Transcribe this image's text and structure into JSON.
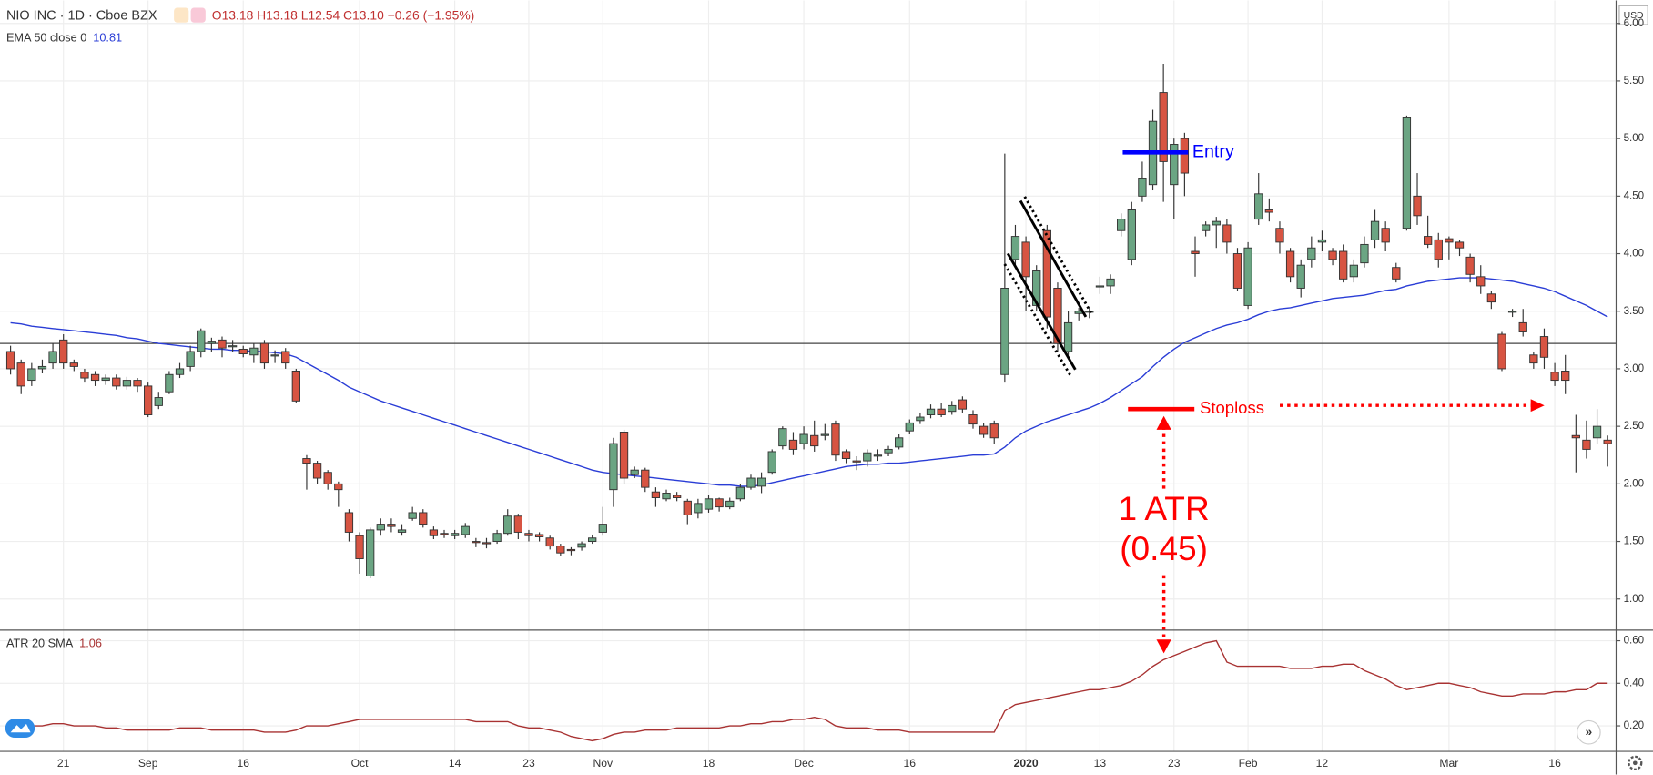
{
  "header": {
    "symbol": "NIO INC · 1D · Cboe BZX",
    "ohlc": "O13.18 H13.18 L12.54 C13.10 −0.26 (−1.95%)",
    "currency": "USD"
  },
  "chart_data": [
    {
      "type": "candlestick",
      "categories": [
        null,
        null,
        null,
        null,
        null,
        "21",
        null,
        null,
        null,
        null,
        null,
        null,
        null,
        "Sep",
        null,
        null,
        null,
        null,
        null,
        null,
        null,
        null,
        "16",
        null,
        null,
        null,
        null,
        null,
        null,
        null,
        null,
        null,
        null,
        "Oct",
        null,
        null,
        null,
        null,
        null,
        null,
        null,
        null,
        "14",
        null,
        null,
        null,
        null,
        null,
        null,
        "23",
        null,
        null,
        null,
        null,
        null,
        null,
        "Nov",
        null,
        null,
        null,
        null,
        null,
        null,
        null,
        null,
        null,
        "18",
        null,
        null,
        null,
        null,
        null,
        null,
        null,
        null,
        "Dec",
        null,
        null,
        null,
        null,
        null,
        null,
        null,
        null,
        null,
        "16",
        null,
        null,
        null,
        null,
        null,
        null,
        null,
        null,
        null,
        null,
        "2020",
        null,
        null,
        null,
        null,
        null,
        null,
        "13",
        null,
        null,
        null,
        null,
        null,
        null,
        "23",
        null,
        null,
        null,
        null,
        null,
        null,
        "Feb",
        null,
        null,
        null,
        null,
        null,
        null,
        "12",
        null,
        null,
        null,
        null,
        null,
        null,
        null,
        null,
        null,
        null,
        null,
        "Mar",
        null,
        null,
        null,
        null,
        null,
        null,
        null,
        null,
        null,
        "16",
        null,
        null,
        null,
        null,
        null
      ],
      "open": [
        3.15,
        3.05,
        2.9,
        3.0,
        3.05,
        3.25,
        3.05,
        2.97,
        2.95,
        2.9,
        2.92,
        2.85,
        2.9,
        2.85,
        2.68,
        2.8,
        2.95,
        3.02,
        3.15,
        3.22,
        3.25,
        3.2,
        3.17,
        3.12,
        3.22,
        3.12,
        3.15,
        2.98,
        2.22,
        2.18,
        2.1,
        2.0,
        1.75,
        1.55,
        1.2,
        1.6,
        1.65,
        1.58,
        1.7,
        1.75,
        1.6,
        1.57,
        1.55,
        1.56,
        1.5,
        1.49,
        1.5,
        1.57,
        1.72,
        1.57,
        1.56,
        1.53,
        1.46,
        1.43,
        1.45,
        1.5,
        1.58,
        1.95,
        2.45,
        2.08,
        2.12,
        1.93,
        1.87,
        1.9,
        1.85,
        1.75,
        1.78,
        1.87,
        1.8,
        1.87,
        1.97,
        1.98,
        2.1,
        2.33,
        2.38,
        2.35,
        2.42,
        2.42,
        2.52,
        2.28,
        2.2,
        2.2,
        2.25,
        2.27,
        2.32,
        2.46,
        2.55,
        2.6,
        2.65,
        2.63,
        2.73,
        2.6,
        2.5,
        2.52,
        2.95,
        3.95,
        4.1,
        3.55,
        4.2,
        3.7,
        3.15,
        3.48,
        3.5,
        3.72,
        3.72,
        4.2,
        3.95,
        4.5,
        4.6,
        5.4,
        4.6,
        5.0,
        4.02,
        4.2,
        4.25,
        4.25,
        4.0,
        3.55,
        4.3,
        4.38,
        4.22,
        4.02,
        3.7,
        3.95,
        4.1,
        4.02,
        4.02,
        3.8,
        3.92,
        4.12,
        4.22,
        3.88,
        4.22,
        4.5,
        4.15,
        4.12,
        4.13,
        4.1,
        3.97,
        3.8,
        3.65,
        3.3,
        3.5,
        3.4,
        3.12,
        3.28,
        2.97,
        2.98,
        2.42,
        2.38,
        2.4,
        2.38
      ],
      "high": [
        3.2,
        3.08,
        3.05,
        3.08,
        3.22,
        3.3,
        3.08,
        3.0,
        2.98,
        2.95,
        2.95,
        2.93,
        2.92,
        2.88,
        2.8,
        2.98,
        3.05,
        3.2,
        3.35,
        3.27,
        3.28,
        3.25,
        3.2,
        3.22,
        3.25,
        3.16,
        3.18,
        3.0,
        2.25,
        2.2,
        2.12,
        2.02,
        1.78,
        1.58,
        1.62,
        1.7,
        1.7,
        1.65,
        1.8,
        1.78,
        1.63,
        1.6,
        1.6,
        1.66,
        1.53,
        1.53,
        1.6,
        1.78,
        1.74,
        1.6,
        1.58,
        1.55,
        1.48,
        1.45,
        1.5,
        1.56,
        1.8,
        2.4,
        2.47,
        2.15,
        2.14,
        1.97,
        1.95,
        1.93,
        1.87,
        1.87,
        1.9,
        1.88,
        1.88,
        2.0,
        2.08,
        2.1,
        2.3,
        2.5,
        2.45,
        2.5,
        2.55,
        2.52,
        2.55,
        2.3,
        2.24,
        2.3,
        2.3,
        2.33,
        2.43,
        2.56,
        2.62,
        2.69,
        2.7,
        2.72,
        2.76,
        2.64,
        2.53,
        2.55,
        4.87,
        4.25,
        4.15,
        3.9,
        4.25,
        3.75,
        3.5,
        3.53,
        3.53,
        3.8,
        3.82,
        4.35,
        4.45,
        4.8,
        5.25,
        5.65,
        5.0,
        5.05,
        4.15,
        4.28,
        4.32,
        4.3,
        4.05,
        4.1,
        4.7,
        4.48,
        4.28,
        4.05,
        3.95,
        4.15,
        4.2,
        4.05,
        4.08,
        3.95,
        4.15,
        4.38,
        4.28,
        3.92,
        5.2,
        4.7,
        4.33,
        4.18,
        4.15,
        4.12,
        4.0,
        3.9,
        3.68,
        3.32,
        3.52,
        3.52,
        3.15,
        3.35,
        3.05,
        3.12,
        2.6,
        2.55,
        2.65,
        2.42
      ],
      "low": [
        2.95,
        2.78,
        2.85,
        2.96,
        3.0,
        3.0,
        2.98,
        2.88,
        2.85,
        2.86,
        2.82,
        2.82,
        2.8,
        2.58,
        2.65,
        2.78,
        2.92,
        2.98,
        3.1,
        3.15,
        3.1,
        3.15,
        3.1,
        3.05,
        3.0,
        3.05,
        3.0,
        2.7,
        1.95,
        2.0,
        1.95,
        1.8,
        1.5,
        1.22,
        1.18,
        1.55,
        1.58,
        1.55,
        1.68,
        1.62,
        1.52,
        1.53,
        1.52,
        1.53,
        1.45,
        1.44,
        1.48,
        1.55,
        1.52,
        1.5,
        1.5,
        1.43,
        1.37,
        1.38,
        1.42,
        1.48,
        1.55,
        1.8,
        2.0,
        2.05,
        1.93,
        1.8,
        1.85,
        1.85,
        1.65,
        1.7,
        1.75,
        1.76,
        1.78,
        1.85,
        1.95,
        1.92,
        2.08,
        2.3,
        2.25,
        2.3,
        2.28,
        2.38,
        2.2,
        2.18,
        2.12,
        2.15,
        2.2,
        2.24,
        2.3,
        2.43,
        2.52,
        2.57,
        2.58,
        2.6,
        2.62,
        2.48,
        2.4,
        2.35,
        2.88,
        3.9,
        3.5,
        3.5,
        3.35,
        3.15,
        3.12,
        3.42,
        3.44,
        3.65,
        3.65,
        4.15,
        3.9,
        4.45,
        4.55,
        4.45,
        4.3,
        4.5,
        3.8,
        4.15,
        4.05,
        4.0,
        3.68,
        3.52,
        4.25,
        4.28,
        4.0,
        3.75,
        3.62,
        3.88,
        4.02,
        3.9,
        3.75,
        3.75,
        3.88,
        4.05,
        4.02,
        3.75,
        4.2,
        4.25,
        4.05,
        3.88,
        3.95,
        3.98,
        3.75,
        3.65,
        3.52,
        2.98,
        3.45,
        3.28,
        3.0,
        3.0,
        2.85,
        2.78,
        2.1,
        2.22,
        2.35,
        2.15
      ],
      "close": [
        3.0,
        2.85,
        3.0,
        3.02,
        3.15,
        3.05,
        3.02,
        2.92,
        2.9,
        2.92,
        2.85,
        2.9,
        2.85,
        2.6,
        2.75,
        2.95,
        3.0,
        3.15,
        3.33,
        3.24,
        3.18,
        3.2,
        3.13,
        3.18,
        3.05,
        3.12,
        3.05,
        2.72,
        2.18,
        2.05,
        2.0,
        1.95,
        1.58,
        1.35,
        1.6,
        1.65,
        1.63,
        1.6,
        1.75,
        1.65,
        1.55,
        1.56,
        1.57,
        1.63,
        1.49,
        1.48,
        1.57,
        1.72,
        1.58,
        1.55,
        1.54,
        1.46,
        1.4,
        1.42,
        1.48,
        1.53,
        1.65,
        2.35,
        2.05,
        2.12,
        1.97,
        1.88,
        1.92,
        1.88,
        1.73,
        1.83,
        1.87,
        1.8,
        1.85,
        1.97,
        2.05,
        2.05,
        2.28,
        2.48,
        2.3,
        2.43,
        2.33,
        2.43,
        2.25,
        2.22,
        2.19,
        2.27,
        2.25,
        2.3,
        2.4,
        2.53,
        2.58,
        2.65,
        2.6,
        2.68,
        2.65,
        2.52,
        2.43,
        2.4,
        3.7,
        4.15,
        3.8,
        3.85,
        3.45,
        3.22,
        3.4,
        3.5,
        3.5,
        3.72,
        3.78,
        4.3,
        4.38,
        4.65,
        5.15,
        4.8,
        4.95,
        4.7,
        4.0,
        4.25,
        4.28,
        4.1,
        3.7,
        4.05,
        4.52,
        4.36,
        4.1,
        3.8,
        3.9,
        4.05,
        4.12,
        3.95,
        3.78,
        3.9,
        4.08,
        4.28,
        4.1,
        3.78,
        5.18,
        4.33,
        4.08,
        3.95,
        4.1,
        4.05,
        3.82,
        3.72,
        3.58,
        3.0,
        3.5,
        3.32,
        3.05,
        3.1,
        2.9,
        2.9,
        2.4,
        2.3,
        2.5,
        2.35
      ],
      "up_color": "#6ba583",
      "down_color": "#d75442",
      "series": [
        {
          "name": "EMA 50 close 0",
          "last_label": "10.81",
          "color": "#2a3dd6",
          "values": [
            3.4,
            3.39,
            3.37,
            3.36,
            3.35,
            3.34,
            3.33,
            3.32,
            3.31,
            3.3,
            3.29,
            3.27,
            3.26,
            3.24,
            3.22,
            3.21,
            3.2,
            3.19,
            3.18,
            3.17,
            3.17,
            3.16,
            3.16,
            3.15,
            3.15,
            3.14,
            3.13,
            3.1,
            3.05,
            3.0,
            2.95,
            2.9,
            2.84,
            2.8,
            2.76,
            2.72,
            2.69,
            2.66,
            2.63,
            2.6,
            2.57,
            2.54,
            2.51,
            2.48,
            2.45,
            2.42,
            2.39,
            2.36,
            2.33,
            2.3,
            2.27,
            2.24,
            2.21,
            2.18,
            2.15,
            2.12,
            2.1,
            2.09,
            2.08,
            2.07,
            2.06,
            2.05,
            2.04,
            2.03,
            2.02,
            2.01,
            2.0,
            1.99,
            1.99,
            1.98,
            1.98,
            1.99,
            2.01,
            2.03,
            2.05,
            2.07,
            2.09,
            2.11,
            2.13,
            2.15,
            2.16,
            2.17,
            2.17,
            2.18,
            2.18,
            2.19,
            2.2,
            2.21,
            2.22,
            2.23,
            2.24,
            2.25,
            2.25,
            2.26,
            2.32,
            2.4,
            2.46,
            2.5,
            2.54,
            2.57,
            2.6,
            2.63,
            2.66,
            2.7,
            2.75,
            2.81,
            2.87,
            2.93,
            3.02,
            3.1,
            3.17,
            3.23,
            3.27,
            3.31,
            3.35,
            3.38,
            3.4,
            3.43,
            3.47,
            3.5,
            3.52,
            3.53,
            3.55,
            3.57,
            3.59,
            3.61,
            3.62,
            3.63,
            3.64,
            3.66,
            3.68,
            3.69,
            3.72,
            3.74,
            3.76,
            3.77,
            3.78,
            3.79,
            3.79,
            3.79,
            3.78,
            3.77,
            3.76,
            3.74,
            3.72,
            3.7,
            3.67,
            3.63,
            3.59,
            3.55,
            3.5,
            3.45
          ]
        }
      ],
      "reference_line": 3.22,
      "annotations": [
        {
          "text": "Entry",
          "value": 4.88,
          "color": "#0000ff"
        },
        {
          "text": "Stoploss",
          "value": 2.65,
          "color": "#ff0000"
        },
        {
          "text": "1 ATR",
          "color": "#ff0000"
        },
        {
          "text": "(0.45)",
          "color": "#ff0000"
        }
      ],
      "ylim": [
        0.73,
        6.2
      ],
      "yticks": [
        {
          "value": 1,
          "label": "1.00"
        },
        {
          "value": 1.5,
          "label": "1.50"
        },
        {
          "value": 2,
          "label": "2.00"
        },
        {
          "value": 2.5,
          "label": "2.50"
        },
        {
          "value": 3,
          "label": "3.00"
        },
        {
          "value": 3.5,
          "label": "3.50"
        },
        {
          "value": 4,
          "label": "4.00"
        },
        {
          "value": 4.5,
          "label": "4.50"
        },
        {
          "value": 5,
          "label": "5.00"
        },
        {
          "value": 5.5,
          "label": "5.50"
        },
        {
          "value": 6,
          "label": "6.00"
        }
      ],
      "grid": true
    },
    {
      "type": "line",
      "series": [
        {
          "name": "ATR 20 SMA",
          "last_label": "1.06",
          "color": "#a83232",
          "values": [
            0.2,
            0.2,
            0.2,
            0.2,
            0.21,
            0.21,
            0.2,
            0.2,
            0.2,
            0.19,
            0.19,
            0.18,
            0.18,
            0.18,
            0.18,
            0.18,
            0.19,
            0.19,
            0.19,
            0.18,
            0.18,
            0.18,
            0.18,
            0.18,
            0.17,
            0.17,
            0.17,
            0.18,
            0.2,
            0.2,
            0.2,
            0.21,
            0.22,
            0.23,
            0.23,
            0.23,
            0.23,
            0.23,
            0.23,
            0.23,
            0.23,
            0.23,
            0.23,
            0.23,
            0.22,
            0.22,
            0.22,
            0.22,
            0.2,
            0.19,
            0.19,
            0.18,
            0.17,
            0.15,
            0.14,
            0.13,
            0.14,
            0.16,
            0.17,
            0.17,
            0.18,
            0.18,
            0.18,
            0.19,
            0.19,
            0.19,
            0.19,
            0.19,
            0.2,
            0.2,
            0.21,
            0.21,
            0.22,
            0.22,
            0.23,
            0.23,
            0.24,
            0.23,
            0.2,
            0.19,
            0.19,
            0.19,
            0.18,
            0.18,
            0.18,
            0.17,
            0.17,
            0.17,
            0.17,
            0.17,
            0.17,
            0.17,
            0.17,
            0.17,
            0.27,
            0.3,
            0.31,
            0.32,
            0.33,
            0.34,
            0.35,
            0.36,
            0.37,
            0.37,
            0.38,
            0.39,
            0.41,
            0.44,
            0.48,
            0.51,
            0.53,
            0.55,
            0.57,
            0.59,
            0.6,
            0.5,
            0.48,
            0.48,
            0.48,
            0.48,
            0.48,
            0.47,
            0.47,
            0.47,
            0.48,
            0.48,
            0.49,
            0.49,
            0.46,
            0.44,
            0.42,
            0.39,
            0.37,
            0.38,
            0.39,
            0.4,
            0.4,
            0.39,
            0.38,
            0.36,
            0.35,
            0.34,
            0.34,
            0.35,
            0.35,
            0.35,
            0.36,
            0.36,
            0.37,
            0.37,
            0.4,
            0.4
          ]
        }
      ],
      "ylim": [
        0.08,
        0.65
      ],
      "yticks": [
        {
          "value": 0.2,
          "label": "0.20"
        },
        {
          "value": 0.4,
          "label": "0.40"
        },
        {
          "value": 0.6,
          "label": "0.60"
        }
      ],
      "grid": true
    }
  ]
}
